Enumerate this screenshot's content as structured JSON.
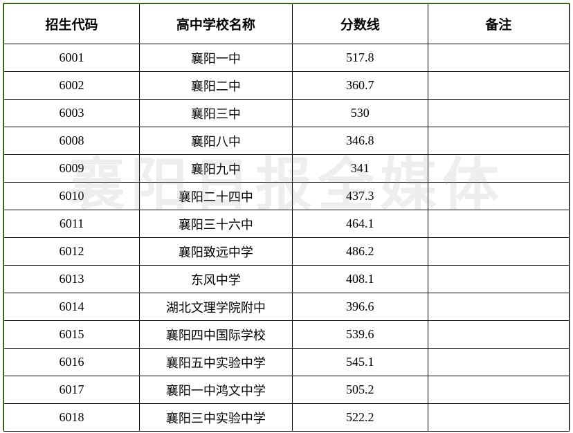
{
  "table": {
    "type": "table",
    "background_color": "#ffffff",
    "outer_border_color": "#7cb342",
    "inner_border_color": "#000000",
    "header_fontsize": 19,
    "cell_fontsize": 18,
    "header_fontweight": "bold",
    "text_color": "#000000",
    "columns": [
      {
        "key": "code",
        "label": "招生代码",
        "width": "24%",
        "align": "center"
      },
      {
        "key": "name",
        "label": "高中学校名称",
        "width": "27%",
        "align": "center"
      },
      {
        "key": "score",
        "label": "分数线",
        "width": "24%",
        "align": "center"
      },
      {
        "key": "note",
        "label": "备注",
        "width": "25%",
        "align": "center"
      }
    ],
    "rows": [
      {
        "code": "6001",
        "name": "襄阳一中",
        "score": "517.8",
        "note": ""
      },
      {
        "code": "6002",
        "name": "襄阳二中",
        "score": "360.7",
        "note": ""
      },
      {
        "code": "6003",
        "name": "襄阳三中",
        "score": "530",
        "note": ""
      },
      {
        "code": "6008",
        "name": "襄阳八中",
        "score": "346.8",
        "note": ""
      },
      {
        "code": "6009",
        "name": "襄阳九中",
        "score": "341",
        "note": ""
      },
      {
        "code": "6010",
        "name": "襄阳二十四中",
        "score": "437.3",
        "note": ""
      },
      {
        "code": "6011",
        "name": "襄阳三十六中",
        "score": "464.1",
        "note": ""
      },
      {
        "code": "6012",
        "name": "襄阳致远中学",
        "score": "486.2",
        "note": ""
      },
      {
        "code": "6013",
        "name": "东风中学",
        "score": "408.1",
        "note": ""
      },
      {
        "code": "6014",
        "name": "湖北文理学院附中",
        "score": "396.6",
        "note": ""
      },
      {
        "code": "6015",
        "name": "襄阳四中国际学校",
        "score": "539.6",
        "note": ""
      },
      {
        "code": "6016",
        "name": "襄阳五中实验中学",
        "score": "545.1",
        "note": ""
      },
      {
        "code": "6017",
        "name": "襄阳一中鸿文中学",
        "score": "505.2",
        "note": ""
      },
      {
        "code": "6018",
        "name": "襄阳三中实验中学",
        "score": "522.2",
        "note": ""
      }
    ]
  },
  "watermark": {
    "text": "襄阳日报全媒体",
    "color": "rgba(160,160,160,0.18)",
    "fontsize": 82
  }
}
